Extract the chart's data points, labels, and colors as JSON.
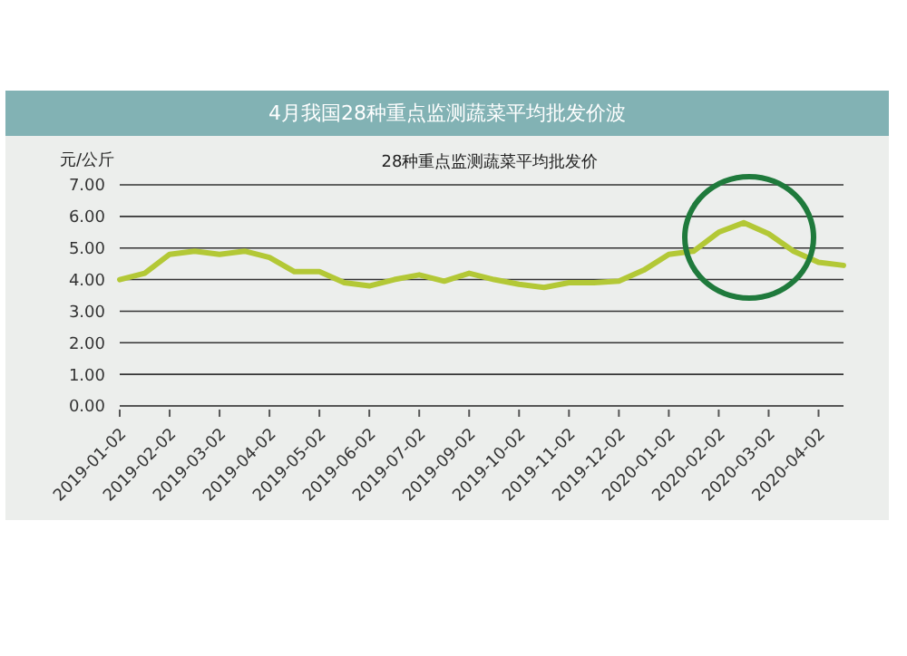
{
  "chart_data": {
    "type": "line",
    "title": "4月我国28种重点监测蔬菜平均批发价波",
    "subtitle": "28种重点监测蔬菜平均批发价",
    "ylabel": "元/公斤",
    "categories": [
      "2019-01-02",
      null,
      "2019-02-02",
      null,
      "2019-03-02",
      null,
      "2019-04-02",
      null,
      "2019-05-02",
      null,
      "2019-06-02",
      null,
      "2019-07-02",
      null,
      "2019-09-02",
      null,
      "2019-10-02",
      null,
      "2019-11-02",
      null,
      "2019-12-02",
      null,
      "2020-01-02",
      null,
      "2020-02-02",
      null,
      "2020-03-02",
      null,
      "2020-04-02",
      null
    ],
    "series": [
      {
        "color": "#b3c836",
        "values": [
          4.0,
          4.2,
          4.8,
          4.9,
          4.8,
          4.9,
          4.7,
          4.25,
          4.25,
          3.9,
          3.8,
          4.0,
          4.15,
          3.95,
          4.2,
          4.0,
          3.85,
          3.75,
          3.9,
          3.9,
          3.95,
          4.3,
          4.8,
          4.9,
          5.5,
          5.8,
          5.45,
          4.9,
          4.55,
          4.45
        ]
      }
    ],
    "ylim": [
      0,
      7
    ],
    "yticks": [
      {
        "value": 0,
        "label": "0.00"
      },
      {
        "value": 1,
        "label": "1.00"
      },
      {
        "value": 2,
        "label": "2.00"
      },
      {
        "value": 3,
        "label": "3.00"
      },
      {
        "value": 4,
        "label": "4.00"
      },
      {
        "value": 5,
        "label": "5.00"
      },
      {
        "value": 6,
        "label": "6.00"
      },
      {
        "value": 7,
        "label": "7.00"
      }
    ],
    "grid": "y",
    "marker": "none",
    "line_style": "solid"
  }
}
